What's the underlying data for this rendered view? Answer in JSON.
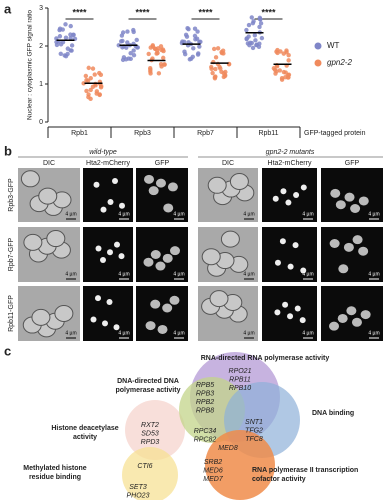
{
  "panel_labels": [
    "a",
    "b",
    "c"
  ],
  "chart_data": {
    "type": "dot",
    "y_label": "Nuclear : cytoplasmic GFP signal ratio",
    "x_label": "GFP-tagged protein",
    "categories": [
      "Rpb1",
      "Rpb3",
      "Rpb7",
      "Rpb11"
    ],
    "series": [
      {
        "name": "WT",
        "color": "#7f86c8",
        "values": [
          2.15,
          2.02,
          2.05,
          2.35
        ]
      },
      {
        "name": "gpn2-2",
        "color": "#f08a5d",
        "values": [
          1.02,
          1.62,
          1.55,
          1.52
        ]
      }
    ],
    "significance": [
      "****",
      "****",
      "****",
      "****"
    ],
    "ylim": [
      0,
      3
    ],
    "yticks": [
      0,
      1,
      2,
      3
    ]
  },
  "panel_b": {
    "groups": [
      {
        "title": "wild-type",
        "columns": [
          "DIC",
          "Hta2-mCherry",
          "GFP"
        ]
      },
      {
        "title": "gpn2-2 mutants",
        "columns": [
          "DIC",
          "Hta2-mCherry",
          "GFP"
        ]
      }
    ],
    "rows": [
      "Rpb3-GFP",
      "Rpb7-GFP",
      "Rpb11-GFP"
    ],
    "scale_bar": "4 µm"
  },
  "panel_c": {
    "sets": [
      {
        "lines": [
          "RNA-directed RNA polymerase activity"
        ]
      },
      {
        "lines": [
          "DNA-directed DNA",
          "polymerase activity"
        ]
      },
      {
        "lines": [
          "DNA binding"
        ]
      },
      {
        "lines": [
          "Histone deacetylase",
          "activity"
        ]
      },
      {
        "lines": [
          "Methylated histone",
          "residue binding"
        ]
      },
      {
        "lines": [
          "RNA polymerase II transcription",
          "cofactor activity"
        ]
      }
    ],
    "genes": [
      {
        "lines": [
          "RPO21",
          "RPB11",
          "RPB10"
        ]
      },
      {
        "lines": [
          "RPB5",
          "RPB3",
          "RPB2",
          "RPB8"
        ]
      },
      {
        "lines": [
          "RPC34",
          "RPC82"
        ]
      },
      {
        "lines": [
          "SNT1",
          "TFG2",
          "TFC8"
        ]
      },
      {
        "lines": [
          "MED8"
        ]
      },
      {
        "lines": [
          "SRB2",
          "MED6",
          "MED7"
        ]
      },
      {
        "lines": [
          "RXT2",
          "SD53",
          "RPD3"
        ]
      },
      {
        "lines": [
          "CTI6"
        ]
      },
      {
        "lines": [
          "SET3",
          "PHO23"
        ]
      }
    ]
  }
}
